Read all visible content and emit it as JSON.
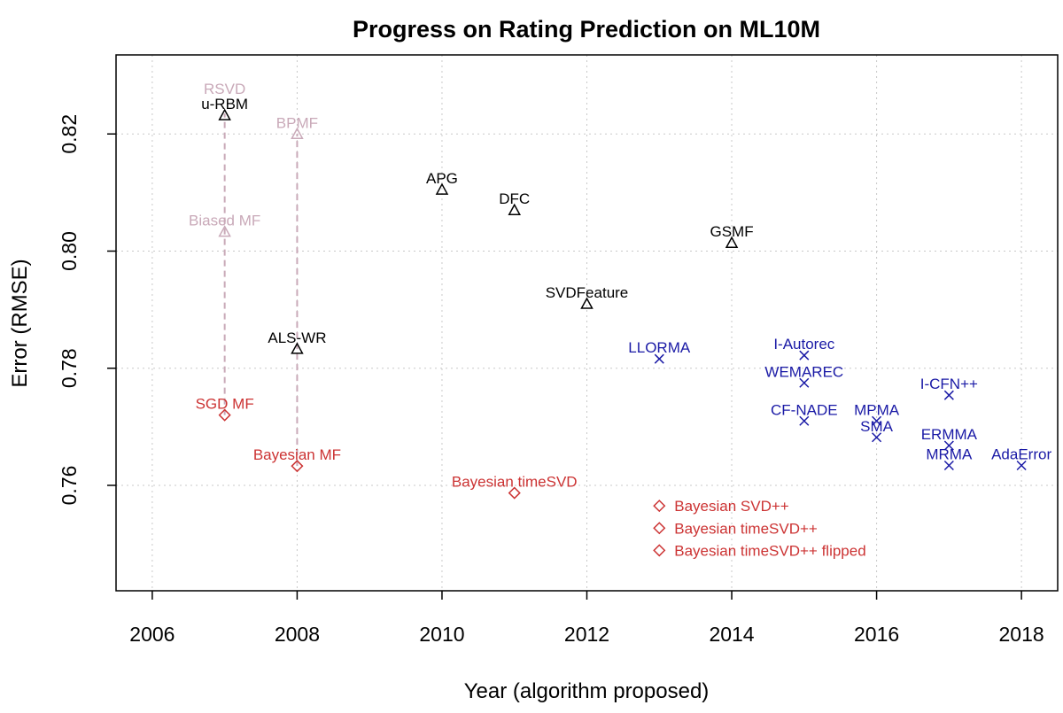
{
  "chart_data": {
    "type": "scatter",
    "title": "Progress on Rating Prediction on ML10M",
    "xlabel": "Year (algorithm proposed)",
    "ylabel": "Error (RMSE)",
    "xlim": [
      2005.5,
      2018.5
    ],
    "ylim": [
      0.742,
      0.8335
    ],
    "xticks": [
      2006,
      2008,
      2010,
      2012,
      2014,
      2016,
      2018
    ],
    "yticks": [
      0.76,
      0.78,
      0.8,
      0.82
    ],
    "ytick_labels": [
      "0.76",
      "0.78",
      "0.80",
      "0.82"
    ],
    "grid": true,
    "colors": {
      "black": "#000000",
      "faded": "#c9a9b8",
      "red": "#cc3333",
      "blue": "#1a1aa6",
      "grid": "#c8c8c8"
    },
    "points": [
      {
        "label": "RSVD",
        "x": 2007,
        "y": 0.8235,
        "marker": "none",
        "color": "faded",
        "label_pos": "above-high"
      },
      {
        "label": "u-RBM",
        "x": 2007,
        "y": 0.8232,
        "marker": "triangle",
        "color": "black",
        "label_pos": "above"
      },
      {
        "label": "BPMF",
        "x": 2008,
        "y": 0.82,
        "marker": "triangle",
        "color": "faded",
        "label_pos": "above"
      },
      {
        "label": "Biased MF",
        "x": 2007,
        "y": 0.8033,
        "marker": "triangle",
        "color": "faded",
        "label_pos": "above"
      },
      {
        "label": "ALS-WR",
        "x": 2008,
        "y": 0.7833,
        "marker": "triangle",
        "color": "black",
        "label_pos": "above"
      },
      {
        "label": "APG",
        "x": 2010,
        "y": 0.8105,
        "marker": "triangle",
        "color": "black",
        "label_pos": "above"
      },
      {
        "label": "DFC",
        "x": 2011,
        "y": 0.807,
        "marker": "triangle",
        "color": "black",
        "label_pos": "above"
      },
      {
        "label": "GSMF",
        "x": 2014,
        "y": 0.8014,
        "marker": "triangle",
        "color": "black",
        "label_pos": "above"
      },
      {
        "label": "SVDFeature",
        "x": 2012,
        "y": 0.791,
        "marker": "triangle",
        "color": "black",
        "label_pos": "above"
      },
      {
        "label": "SGD MF",
        "x": 2007,
        "y": 0.772,
        "marker": "diamond",
        "color": "red",
        "label_pos": "above"
      },
      {
        "label": "Bayesian MF",
        "x": 2008,
        "y": 0.7633,
        "marker": "diamond",
        "color": "red",
        "label_pos": "above"
      },
      {
        "label": "Bayesian timeSVD",
        "x": 2011,
        "y": 0.7587,
        "marker": "diamond",
        "color": "red",
        "label_pos": "above"
      },
      {
        "label": "Bayesian SVD++",
        "x": 2013,
        "y": 0.7565,
        "marker": "diamond",
        "color": "red",
        "label_pos": "right"
      },
      {
        "label": "Bayesian timeSVD++",
        "x": 2013,
        "y": 0.7527,
        "marker": "diamond",
        "color": "red",
        "label_pos": "right"
      },
      {
        "label": "Bayesian timeSVD++ flipped",
        "x": 2013,
        "y": 0.7489,
        "marker": "diamond",
        "color": "red",
        "label_pos": "right"
      },
      {
        "label": "LLORMA",
        "x": 2013,
        "y": 0.7816,
        "marker": "x",
        "color": "blue",
        "label_pos": "above"
      },
      {
        "label": "I-Autorec",
        "x": 2015,
        "y": 0.7822,
        "marker": "x",
        "color": "blue",
        "label_pos": "above"
      },
      {
        "label": "WEMAREC",
        "x": 2015,
        "y": 0.7775,
        "marker": "x",
        "color": "blue",
        "label_pos": "above"
      },
      {
        "label": "CF-NADE",
        "x": 2015,
        "y": 0.771,
        "marker": "x",
        "color": "blue",
        "label_pos": "above"
      },
      {
        "label": "MPMA",
        "x": 2016,
        "y": 0.771,
        "marker": "x",
        "color": "blue",
        "label_pos": "above"
      },
      {
        "label": "SMA",
        "x": 2016,
        "y": 0.7682,
        "marker": "x",
        "color": "blue",
        "label_pos": "above"
      },
      {
        "label": "I-CFN++",
        "x": 2017,
        "y": 0.7754,
        "marker": "x",
        "color": "blue",
        "label_pos": "above"
      },
      {
        "label": "ERMMA",
        "x": 2017,
        "y": 0.7668,
        "marker": "x",
        "color": "blue",
        "label_pos": "above"
      },
      {
        "label": "MRMA",
        "x": 2017,
        "y": 0.7634,
        "marker": "x",
        "color": "blue",
        "label_pos": "above"
      },
      {
        "label": "AdaError",
        "x": 2018,
        "y": 0.7634,
        "marker": "x",
        "color": "blue",
        "label_pos": "above"
      }
    ],
    "dashed_lines": [
      {
        "x": 2007,
        "y_from": 0.772,
        "y_to": 0.8235,
        "color": "faded"
      },
      {
        "x": 2008,
        "y_from": 0.7633,
        "y_to": 0.82,
        "color": "faded"
      }
    ]
  }
}
